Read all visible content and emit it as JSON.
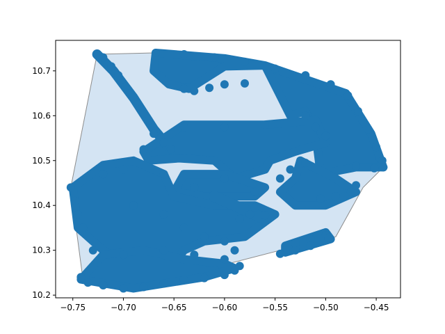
{
  "chart_data": {
    "type": "scatter",
    "title": "",
    "xlabel": "",
    "ylabel": "",
    "xlim": [
      -0.767,
      -0.426
    ],
    "ylim": [
      10.194,
      10.768
    ],
    "x_ticks": [
      -0.75,
      -0.7,
      -0.65,
      -0.6,
      -0.55,
      -0.5,
      -0.45
    ],
    "x_tick_labels": [
      "−0.75",
      "−0.70",
      "−0.65",
      "−0.60",
      "−0.55",
      "−0.50",
      "−0.45"
    ],
    "y_ticks": [
      10.2,
      10.3,
      10.4,
      10.5,
      10.6,
      10.7
    ],
    "y_tick_labels": [
      "10.2",
      "10.3",
      "10.4",
      "10.5",
      "10.6",
      "10.7"
    ],
    "grid": false,
    "legend": "none",
    "colors": {
      "points": "#1f77b4",
      "hull_fill": "#c6dbef",
      "hull_edge": "#8c8c8c",
      "axes": "#000000"
    },
    "hull": [
      [
        -0.726,
        10.737
      ],
      [
        -0.67,
        10.74
      ],
      [
        -0.6,
        10.727
      ],
      [
        -0.54,
        10.7
      ],
      [
        -0.48,
        10.65
      ],
      [
        -0.455,
        10.56
      ],
      [
        -0.443,
        10.485
      ],
      [
        -0.463,
        10.44
      ],
      [
        -0.49,
        10.33
      ],
      [
        -0.545,
        10.3
      ],
      [
        -0.605,
        10.265
      ],
      [
        -0.7,
        10.21
      ],
      [
        -0.74,
        10.235
      ],
      [
        -0.752,
        10.44
      ]
    ],
    "series": [
      {
        "regions": [
          {
            "kind": "poly",
            "pts": [
              [
                -0.668,
                10.74
              ],
              [
                -0.6,
                10.728
              ],
              [
                -0.56,
                10.712
              ],
              [
                -0.6,
                10.71
              ],
              [
                -0.635,
                10.66
              ],
              [
                -0.655,
                10.67
              ],
              [
                -0.67,
                10.7
              ]
            ]
          },
          {
            "kind": "poly",
            "pts": [
              [
                -0.56,
                10.712
              ],
              [
                -0.48,
                10.65
              ],
              [
                -0.455,
                10.56
              ],
              [
                -0.443,
                10.485
              ],
              [
                -0.47,
                10.485
              ],
              [
                -0.505,
                10.47
              ],
              [
                -0.51,
                10.56
              ],
              [
                -0.52,
                10.61
              ],
              [
                -0.535,
                10.6
              ]
            ]
          },
          {
            "kind": "poly",
            "pts": [
              [
                -0.68,
                10.52
              ],
              [
                -0.64,
                10.58
              ],
              [
                -0.56,
                10.58
              ],
              [
                -0.51,
                10.59
              ],
              [
                -0.5,
                10.54
              ],
              [
                -0.53,
                10.52
              ],
              [
                -0.555,
                10.5
              ],
              [
                -0.56,
                10.48
              ],
              [
                -0.59,
                10.46
              ],
              [
                -0.61,
                10.5
              ],
              [
                -0.645,
                10.505
              ],
              [
                -0.675,
                10.5
              ]
            ]
          },
          {
            "kind": "poly",
            "pts": [
              [
                -0.64,
                10.47
              ],
              [
                -0.6,
                10.47
              ],
              [
                -0.56,
                10.44
              ],
              [
                -0.57,
                10.42
              ],
              [
                -0.62,
                10.42
              ],
              [
                -0.65,
                10.43
              ]
            ]
          },
          {
            "kind": "poly",
            "pts": [
              [
                -0.525,
                10.5
              ],
              [
                -0.49,
                10.46
              ],
              [
                -0.47,
                10.43
              ],
              [
                -0.5,
                10.4
              ],
              [
                -0.53,
                10.4
              ],
              [
                -0.545,
                10.43
              ],
              [
                -0.53,
                10.46
              ]
            ]
          },
          {
            "kind": "poly",
            "pts": [
              [
                -0.75,
                10.44
              ],
              [
                -0.72,
                10.49
              ],
              [
                -0.69,
                10.5
              ],
              [
                -0.66,
                10.47
              ],
              [
                -0.65,
                10.42
              ],
              [
                -0.61,
                10.4
              ],
              [
                -0.57,
                10.4
              ],
              [
                -0.55,
                10.38
              ],
              [
                -0.58,
                10.33
              ],
              [
                -0.62,
                10.32
              ],
              [
                -0.64,
                10.3
              ],
              [
                -0.65,
                10.27
              ],
              [
                -0.69,
                10.26
              ],
              [
                -0.72,
                10.3
              ],
              [
                -0.745,
                10.35
              ]
            ]
          },
          {
            "kind": "poly",
            "pts": [
              [
                -0.742,
                10.235
              ],
              [
                -0.72,
                10.29
              ],
              [
                -0.68,
                10.3
              ],
              [
                -0.64,
                10.28
              ],
              [
                -0.6,
                10.27
              ],
              [
                -0.59,
                10.26
              ],
              [
                -0.62,
                10.24
              ],
              [
                -0.69,
                10.215
              ]
            ]
          },
          {
            "kind": "poly",
            "pts": [
              [
                -0.54,
                10.31
              ],
              [
                -0.5,
                10.34
              ],
              [
                -0.495,
                10.325
              ],
              [
                -0.54,
                10.295
              ]
            ]
          },
          {
            "kind": "stroke",
            "width": 14,
            "pts": [
              [
                -0.726,
                10.737
              ],
              [
                -0.71,
                10.7
              ],
              [
                -0.69,
                10.64
              ],
              [
                -0.67,
                10.57
              ],
              [
                -0.655,
                10.53
              ]
            ]
          },
          {
            "kind": "stroke",
            "width": 16,
            "pts": [
              [
                -0.61,
                10.42
              ],
              [
                -0.58,
                10.39
              ],
              [
                -0.56,
                10.37
              ]
            ]
          }
        ],
        "points": [
          [
            -0.726,
            10.737
          ],
          [
            -0.72,
            10.73
          ],
          [
            -0.712,
            10.71
          ],
          [
            -0.705,
            10.69
          ],
          [
            -0.698,
            10.665
          ],
          [
            -0.69,
            10.64
          ],
          [
            -0.683,
            10.615
          ],
          [
            -0.675,
            10.59
          ],
          [
            -0.668,
            10.565
          ],
          [
            -0.66,
            10.54
          ],
          [
            -0.653,
            10.525
          ],
          [
            -0.668,
            10.74
          ],
          [
            -0.64,
            10.737
          ],
          [
            -0.61,
            10.73
          ],
          [
            -0.58,
            10.72
          ],
          [
            -0.55,
            10.705
          ],
          [
            -0.52,
            10.69
          ],
          [
            -0.495,
            10.67
          ],
          [
            -0.478,
            10.645
          ],
          [
            -0.468,
            10.61
          ],
          [
            -0.458,
            10.57
          ],
          [
            -0.45,
            10.53
          ],
          [
            -0.444,
            10.5
          ],
          [
            -0.443,
            10.485
          ],
          [
            -0.452,
            10.483
          ],
          [
            -0.47,
            10.488
          ],
          [
            -0.752,
            10.44
          ],
          [
            -0.748,
            10.41
          ],
          [
            -0.745,
            10.38
          ],
          [
            -0.74,
            10.35
          ],
          [
            -0.742,
            10.24
          ],
          [
            -0.735,
            10.228
          ],
          [
            -0.72,
            10.222
          ],
          [
            -0.7,
            10.215
          ],
          [
            -0.68,
            10.218
          ],
          [
            -0.66,
            10.226
          ],
          [
            -0.64,
            10.234
          ],
          [
            -0.62,
            10.238
          ],
          [
            -0.6,
            10.245
          ],
          [
            -0.59,
            10.255
          ],
          [
            -0.585,
            10.265
          ],
          [
            -0.64,
            10.66
          ],
          [
            -0.63,
            10.655
          ],
          [
            -0.615,
            10.662
          ],
          [
            -0.6,
            10.67
          ],
          [
            -0.58,
            10.672
          ],
          [
            -0.54,
            10.3
          ],
          [
            -0.53,
            10.315
          ],
          [
            -0.515,
            10.325
          ],
          [
            -0.5,
            10.333
          ],
          [
            -0.497,
            10.328
          ],
          [
            -0.545,
            10.292
          ],
          [
            -0.53,
            10.3
          ],
          [
            -0.515,
            10.31
          ],
          [
            -0.575,
            10.38
          ],
          [
            -0.57,
            10.395
          ],
          [
            -0.585,
            10.37
          ],
          [
            -0.56,
            10.378
          ],
          [
            -0.505,
            10.415
          ],
          [
            -0.49,
            10.42
          ],
          [
            -0.475,
            10.43
          ],
          [
            -0.47,
            10.445
          ],
          [
            -0.5,
            10.555
          ],
          [
            -0.51,
            10.575
          ],
          [
            -0.52,
            10.6
          ],
          [
            -0.56,
            10.58
          ],
          [
            -0.6,
            10.575
          ],
          [
            -0.64,
            10.575
          ],
          [
            -0.67,
            10.56
          ],
          [
            -0.68,
            10.525
          ],
          [
            -0.66,
            10.47
          ],
          [
            -0.63,
            10.44
          ],
          [
            -0.6,
            10.46
          ],
          [
            -0.57,
            10.43
          ],
          [
            -0.545,
            10.46
          ],
          [
            -0.535,
            10.48
          ],
          [
            -0.52,
            10.495
          ],
          [
            -0.7,
            10.48
          ],
          [
            -0.72,
            10.47
          ],
          [
            -0.69,
            10.4
          ],
          [
            -0.66,
            10.38
          ],
          [
            -0.64,
            10.35
          ],
          [
            -0.62,
            10.33
          ],
          [
            -0.6,
            10.32
          ],
          [
            -0.59,
            10.3
          ],
          [
            -0.6,
            10.28
          ],
          [
            -0.63,
            10.29
          ],
          [
            -0.66,
            10.3
          ],
          [
            -0.7,
            10.29
          ],
          [
            -0.73,
            10.3
          ]
        ]
      }
    ]
  }
}
